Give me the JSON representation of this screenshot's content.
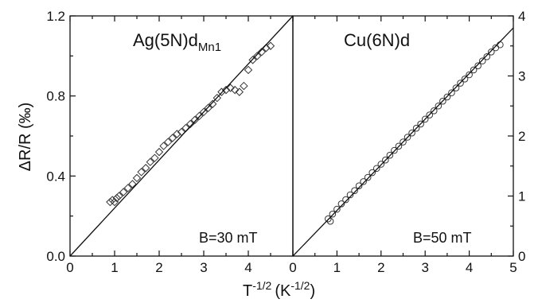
{
  "chart_data": [
    {
      "type": "scatter",
      "panel": "left",
      "title_main": "Ag(5N)d",
      "title_sub": "Mn1",
      "annotation": "B=30 mT",
      "marker": "diamond",
      "xlim": [
        0,
        5
      ],
      "ylim": [
        0,
        1.2
      ],
      "x_ticks": [
        "0",
        "1",
        "2",
        "3",
        "4"
      ],
      "y_ticks": [
        "0.0",
        "0.4",
        "0.8",
        "1.2"
      ],
      "ylabel": "ΔR/R (‰)",
      "fit_line": {
        "x": [
          0,
          5
        ],
        "y": [
          0,
          1.2
        ]
      },
      "x": [
        0.9,
        0.95,
        1.0,
        1.05,
        1.1,
        1.2,
        1.3,
        1.4,
        1.5,
        1.6,
        1.7,
        1.8,
        1.9,
        2.0,
        2.1,
        2.2,
        2.3,
        2.4,
        2.5,
        2.6,
        2.7,
        2.8,
        2.9,
        3.0,
        3.1,
        3.2,
        3.3,
        3.4,
        3.5,
        3.6,
        3.7,
        3.8,
        3.9,
        4.0,
        4.1,
        4.2,
        4.3,
        4.4,
        4.5
      ],
      "y": [
        0.27,
        0.28,
        0.27,
        0.29,
        0.3,
        0.32,
        0.34,
        0.36,
        0.39,
        0.42,
        0.44,
        0.47,
        0.49,
        0.52,
        0.55,
        0.57,
        0.59,
        0.61,
        0.62,
        0.64,
        0.66,
        0.68,
        0.7,
        0.72,
        0.74,
        0.76,
        0.79,
        0.82,
        0.83,
        0.84,
        0.83,
        0.82,
        0.85,
        0.93,
        0.98,
        1.0,
        1.02,
        1.04,
        1.05
      ]
    },
    {
      "type": "scatter",
      "panel": "right",
      "title_main": "Cu(6N)d",
      "title_sub": "",
      "annotation": "B=50 mT",
      "marker": "circle",
      "xlim": [
        0,
        5
      ],
      "ylim": [
        0,
        4
      ],
      "x_ticks": [
        "0",
        "1",
        "2",
        "3",
        "4",
        "5"
      ],
      "y_ticks": [
        "0",
        "1",
        "2",
        "3",
        "4"
      ],
      "fit_line": {
        "x": [
          0,
          5
        ],
        "y": [
          0,
          3.8
        ]
      },
      "x": [
        0.8,
        0.85,
        0.9,
        1.0,
        1.1,
        1.2,
        1.3,
        1.4,
        1.5,
        1.6,
        1.7,
        1.8,
        1.9,
        2.0,
        2.1,
        2.2,
        2.3,
        2.4,
        2.5,
        2.6,
        2.7,
        2.8,
        2.9,
        3.0,
        3.1,
        3.2,
        3.3,
        3.4,
        3.5,
        3.6,
        3.7,
        3.8,
        3.9,
        4.0,
        4.1,
        4.2,
        4.3,
        4.4,
        4.5,
        4.6,
        4.7
      ],
      "y": [
        0.62,
        0.58,
        0.7,
        0.78,
        0.87,
        0.94,
        1.02,
        1.09,
        1.17,
        1.24,
        1.31,
        1.39,
        1.46,
        1.53,
        1.6,
        1.68,
        1.76,
        1.83,
        1.9,
        1.98,
        2.05,
        2.13,
        2.2,
        2.28,
        2.35,
        2.42,
        2.5,
        2.58,
        2.65,
        2.72,
        2.8,
        2.88,
        2.95,
        3.02,
        3.1,
        3.17,
        3.25,
        3.32,
        3.4,
        3.47,
        3.52
      ]
    }
  ],
  "shared": {
    "xlabel_base": "T",
    "xlabel_exp": "-1/2",
    "xlabel_unit_open": "(K",
    "xlabel_unit_exp": "-1/2",
    "xlabel_unit_close": ")"
  }
}
